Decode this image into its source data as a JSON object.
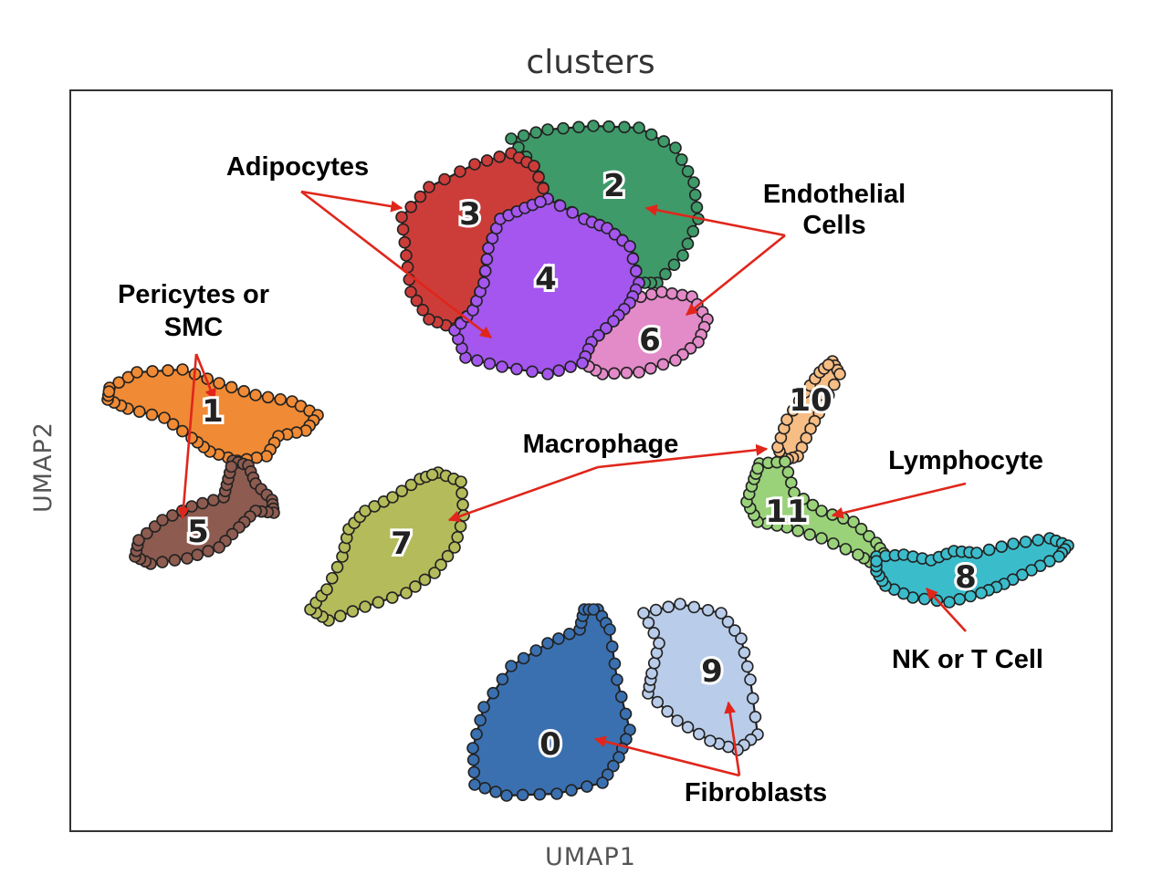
{
  "chart_data": {
    "type": "scatter",
    "title": "clusters",
    "xlabel": "UMAP1",
    "ylabel": "UMAP2",
    "grid": false,
    "legend": "none",
    "series": [
      {
        "label": "0",
        "color": "#3a70b0"
      },
      {
        "label": "1",
        "color": "#f08a34"
      },
      {
        "label": "2",
        "color": "#3f9a6a"
      },
      {
        "label": "3",
        "color": "#cc3d3a"
      },
      {
        "label": "4",
        "color": "#a456ee"
      },
      {
        "label": "5",
        "color": "#8d5b4f"
      },
      {
        "label": "6",
        "color": "#e38ac8"
      },
      {
        "label": "7",
        "color": "#b4bb5a"
      },
      {
        "label": "8",
        "color": "#3bbccb"
      },
      {
        "label": "9",
        "color": "#b9cdea"
      },
      {
        "label": "10",
        "color": "#f6bd84"
      },
      {
        "label": "11",
        "color": "#9ad27a"
      }
    ],
    "annotations": [
      {
        "lines": [
          "Adipocytes"
        ],
        "targets": [
          "3",
          "4"
        ]
      },
      {
        "lines": [
          "Endothelial",
          "Cells"
        ],
        "targets": [
          "2",
          "6"
        ]
      },
      {
        "lines": [
          "Pericytes or",
          "SMC"
        ],
        "targets": [
          "1",
          "5"
        ]
      },
      {
        "lines": [
          "Macrophage"
        ],
        "targets": [
          "7",
          "10"
        ]
      },
      {
        "lines": [
          "Lymphocyte"
        ],
        "targets": [
          "11"
        ]
      },
      {
        "lines": [
          "NK or T Cell"
        ],
        "targets": [
          "8"
        ]
      },
      {
        "lines": [
          "Fibroblasts"
        ],
        "targets": [
          "0",
          "9"
        ]
      }
    ]
  }
}
